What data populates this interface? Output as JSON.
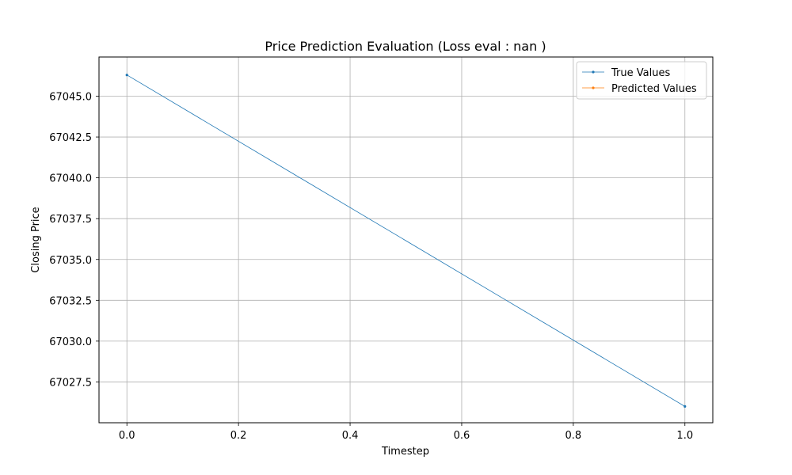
{
  "chart_data": {
    "type": "line",
    "title": "Price Prediction Evaluation (Loss eval : nan )",
    "xlabel": "Timestep",
    "ylabel": "Closing Price",
    "xlim": [
      -0.05,
      1.05
    ],
    "ylim": [
      67025.0,
      67047.4
    ],
    "x_ticks": [
      0.0,
      0.2,
      0.4,
      0.6,
      0.8,
      1.0
    ],
    "x_tick_labels": [
      "0.0",
      "0.2",
      "0.4",
      "0.6",
      "0.8",
      "1.0"
    ],
    "y_ticks": [
      67027.5,
      67030.0,
      67032.5,
      67035.0,
      67037.5,
      67040.0,
      67042.5,
      67045.0
    ],
    "y_tick_labels": [
      "67027.5",
      "67030.0",
      "67032.5",
      "67035.0",
      "67037.5",
      "67040.0",
      "67042.5",
      "67045.0"
    ],
    "grid": true,
    "legend_position": "top-right",
    "series": [
      {
        "name": "True Values",
        "color": "#1f77b4",
        "x": [
          0.0,
          1.0
        ],
        "y": [
          67046.3,
          67026.0
        ]
      },
      {
        "name": "Predicted Values",
        "color": "#ff7f0e",
        "x": [],
        "y": []
      }
    ]
  }
}
